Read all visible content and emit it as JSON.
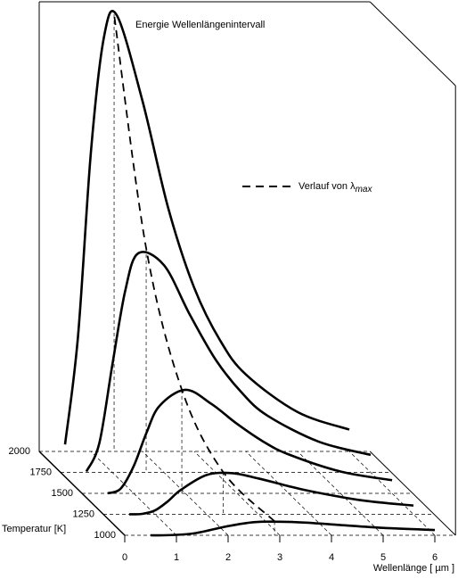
{
  "chart_data": {
    "type": "line3d",
    "title": "Energie Wellenlängenintervall",
    "x_label": "Wellenlänge [ µm ]",
    "z_label": "Temperatur [K]",
    "color": "#000000",
    "x": [
      0.5,
      0.75,
      1,
      1.25,
      1.5,
      2,
      2.5,
      3,
      3.5,
      4,
      5,
      6
    ],
    "xlim": [
      0,
      6.4
    ],
    "xticks": [
      0,
      1,
      2,
      3,
      4,
      5,
      6
    ],
    "ylim": [
      0,
      100
    ],
    "z": [
      1000,
      1250,
      1500,
      1750,
      2000
    ],
    "series": [
      {
        "values": [
          0.0,
          0.0,
          0.1,
          0.3,
          0.8,
          2.1,
          3.0,
          3.1,
          2.9,
          2.5,
          1.7,
          1.2
        ]
      },
      {
        "values": [
          0.0,
          0.1,
          0.9,
          3.0,
          5.6,
          9.0,
          9.4,
          8.2,
          6.7,
          5.3,
          3.2,
          2.0
        ]
      },
      {
        "values": [
          0.0,
          1.1,
          6.2,
          13.9,
          20.0,
          23.7,
          20.5,
          15.9,
          11.9,
          8.9,
          5.0,
          3.0
        ]
      },
      {
        "values": [
          0.2,
          6.7,
          24.5,
          41.5,
          50.1,
          47.4,
          36.1,
          25.8,
          18.3,
          13.0,
          7.0,
          4.0
        ]
      },
      {
        "values": [
          1.6,
          26.2,
          68.4,
          94.6,
          99.8,
          80.1,
          55.5,
          37.4,
          25.4,
          17.6,
          9.0,
          5.0
        ]
      }
    ],
    "peak_line": {
      "name": "Verlauf von λ",
      "name_sub": "max",
      "x": [
        2.898,
        2.318,
        1.932,
        1.656,
        1.449
      ],
      "values": [
        3.2,
        9.7,
        23.7,
        51.3,
        100
      ]
    }
  }
}
